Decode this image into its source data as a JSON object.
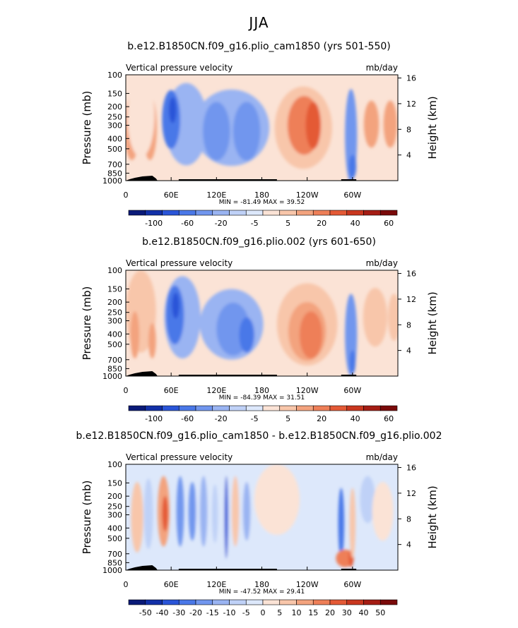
{
  "page_title": "JJA",
  "chart_data": [
    {
      "type": "heatmap",
      "title": "b.e12.B1850CN.f09_g16.plio_cam1850 (yrs 501-550)",
      "left_label": "Vertical pressure velocity",
      "right_label": "mb/day",
      "ylabel": "Pressure (mb)",
      "ylabel_right": "Height (km)",
      "x_ticks": [
        "0",
        "60E",
        "120E",
        "180",
        "120W",
        "60W"
      ],
      "y_ticks": [
        "100",
        "150",
        "200",
        "250",
        "300",
        "400",
        "500",
        "700",
        "850",
        "1000"
      ],
      "height_ticks": [
        "4",
        "8",
        "12",
        "16"
      ],
      "min_max_text": "MIN = -81.49   MAX =  39.52",
      "colorbar_labels": [
        "-100",
        "-60",
        "-20",
        "-5",
        "5",
        "20",
        "40",
        "60"
      ],
      "colorbar_colors": [
        "#0a1a78",
        "#1230a8",
        "#2a55d8",
        "#4a78e8",
        "#7196ee",
        "#9ab4f2",
        "#bfd1f7",
        "#dde8fb",
        "#fbe3d6",
        "#f8c6aa",
        "#f3a37e",
        "#ee7f58",
        "#e45a36",
        "#c9371f",
        "#a51d14",
        "#7a0a0a"
      ],
      "blobs": [
        {
          "lon": 8,
          "lev": 4.5,
          "rx": 10,
          "ry": 5.5,
          "value": 20
        },
        {
          "lon": 32,
          "lev": 4.5,
          "rx": 9,
          "ry": 5.5,
          "value": 20
        },
        {
          "lon": 20,
          "lev": 3.5,
          "rx": 18,
          "ry": 7,
          "value": 5
        },
        {
          "lon": 80,
          "lev": 4.2,
          "rx": 28,
          "ry": 7,
          "value": -15
        },
        {
          "lon": 60,
          "lev": 3.8,
          "rx": 12,
          "ry": 5,
          "value": -40
        },
        {
          "lon": 62,
          "lev": 3.0,
          "rx": 5,
          "ry": 2.2,
          "value": -70
        },
        {
          "lon": 140,
          "lev": 4.5,
          "rx": 50,
          "ry": 6.5,
          "value": -12
        },
        {
          "lon": 120,
          "lev": 4.8,
          "rx": 18,
          "ry": 5,
          "value": -35
        },
        {
          "lon": 160,
          "lev": 4.8,
          "rx": 18,
          "ry": 5,
          "value": -25
        },
        {
          "lon": 235,
          "lev": 4.5,
          "rx": 38,
          "ry": 7,
          "value": 10
        },
        {
          "lon": 236,
          "lev": 4.3,
          "rx": 22,
          "ry": 5,
          "value": 25
        },
        {
          "lon": 248,
          "lev": 4.3,
          "rx": 10,
          "ry": 4,
          "value": 35
        },
        {
          "lon": 298,
          "lev": 5.2,
          "rx": 8,
          "ry": 8,
          "value": -20
        },
        {
          "lon": 300,
          "lev": 7.8,
          "rx": 5,
          "ry": 2,
          "value": -55
        },
        {
          "lon": 325,
          "lev": 4.2,
          "rx": 10,
          "ry": 4,
          "value": 20
        },
        {
          "lon": 350,
          "lev": 4.2,
          "rx": 9,
          "ry": 4,
          "value": 15
        }
      ]
    },
    {
      "type": "heatmap",
      "title": "b.e12.B1850CN.f09_g16.plio.002 (yrs 601-650)",
      "left_label": "Vertical pressure velocity",
      "right_label": "mb/day",
      "ylabel": "Pressure (mb)",
      "ylabel_right": "Height (km)",
      "x_ticks": [
        "0",
        "60E",
        "120E",
        "180",
        "120W",
        "60W"
      ],
      "y_ticks": [
        "100",
        "150",
        "200",
        "250",
        "300",
        "400",
        "500",
        "700",
        "850",
        "1000"
      ],
      "height_ticks": [
        "4",
        "8",
        "12",
        "16"
      ],
      "min_max_text": "MIN = -84.39   MAX =  31.51",
      "colorbar_labels": [
        "-100",
        "-60",
        "-20",
        "-5",
        "5",
        "20",
        "40",
        "60"
      ],
      "colorbar_colors": [
        "#0a1a78",
        "#1230a8",
        "#2a55d8",
        "#4a78e8",
        "#7196ee",
        "#9ab4f2",
        "#bfd1f7",
        "#dde8fb",
        "#fbe3d6",
        "#f8c6aa",
        "#f3a37e",
        "#ee7f58",
        "#e45a36",
        "#c9371f",
        "#a51d14",
        "#7a0a0a"
      ],
      "blobs": [
        {
          "lon": 20,
          "lev": 3.5,
          "rx": 20,
          "ry": 7,
          "value": 8
        },
        {
          "lon": 12,
          "lev": 5.5,
          "rx": 6,
          "ry": 4,
          "value": 20
        },
        {
          "lon": 35,
          "lev": 6.0,
          "rx": 5,
          "ry": 3,
          "value": 12
        },
        {
          "lon": 75,
          "lev": 4.0,
          "rx": 24,
          "ry": 7,
          "value": -12
        },
        {
          "lon": 65,
          "lev": 3.8,
          "rx": 12,
          "ry": 5,
          "value": -40
        },
        {
          "lon": 66,
          "lev": 3.0,
          "rx": 5,
          "ry": 2.2,
          "value": -70
        },
        {
          "lon": 140,
          "lev": 4.6,
          "rx": 42,
          "ry": 6,
          "value": -10
        },
        {
          "lon": 142,
          "lev": 5.0,
          "rx": 22,
          "ry": 4.5,
          "value": -25
        },
        {
          "lon": 160,
          "lev": 5.5,
          "rx": 10,
          "ry": 3,
          "value": -45
        },
        {
          "lon": 240,
          "lev": 4.6,
          "rx": 40,
          "ry": 7,
          "value": 10
        },
        {
          "lon": 240,
          "lev": 5.2,
          "rx": 25,
          "ry": 5,
          "value": 20
        },
        {
          "lon": 245,
          "lev": 5.5,
          "rx": 15,
          "ry": 4,
          "value": 28
        },
        {
          "lon": 298,
          "lev": 5.5,
          "rx": 8,
          "ry": 7,
          "value": -20
        },
        {
          "lon": 300,
          "lev": 7.8,
          "rx": 4,
          "ry": 2,
          "value": -50
        },
        {
          "lon": 330,
          "lev": 4.0,
          "rx": 16,
          "ry": 5,
          "value": 6
        },
        {
          "lon": 355,
          "lev": 4.0,
          "rx": 8,
          "ry": 4,
          "value": 8
        }
      ]
    },
    {
      "type": "heatmap",
      "title": "b.e12.B1850CN.f09_g16.plio_cam1850 - b.e12.B1850CN.f09_g16.plio.002",
      "left_label": "Vertical pressure velocity",
      "right_label": "mb/day",
      "ylabel": "Pressure (mb)",
      "ylabel_right": "Height (km)",
      "x_ticks": [
        "0",
        "60E",
        "120E",
        "180",
        "120W",
        "60W"
      ],
      "y_ticks": [
        "100",
        "150",
        "200",
        "250",
        "300",
        "400",
        "500",
        "700",
        "850",
        "1000"
      ],
      "height_ticks": [
        "4",
        "8",
        "12",
        "16"
      ],
      "min_max_text": "MIN = -47.52   MAX =  29.41",
      "colorbar_labels": [
        "-50",
        "-40",
        "-30",
        "-20",
        "-15",
        "-10",
        "-5",
        "0",
        "5",
        "10",
        "15",
        "20",
        "30",
        "40",
        "50"
      ],
      "colorbar_colors": [
        "#0a1a78",
        "#1230a8",
        "#2a55d8",
        "#4a78e8",
        "#7196ee",
        "#9ab4f2",
        "#bfd1f7",
        "#dde8fb",
        "#fbe3d6",
        "#f8c6aa",
        "#f3a37e",
        "#ee7f58",
        "#e45a36",
        "#c9371f",
        "#a51d14",
        "#7a0a0a"
      ],
      "blobs": [
        {
          "lon": 150,
          "lev": 4.0,
          "rx": 60,
          "ry": 8,
          "value": -3
        },
        {
          "lon": 15,
          "lev": 4.5,
          "rx": 8,
          "ry": 6,
          "value": 8
        },
        {
          "lon": 30,
          "lev": 4.2,
          "rx": 6,
          "ry": 6,
          "value": -8
        },
        {
          "lon": 50,
          "lev": 4.0,
          "rx": 8,
          "ry": 6,
          "value": 15
        },
        {
          "lon": 52,
          "lev": 4.2,
          "rx": 4,
          "ry": 3,
          "value": 30
        },
        {
          "lon": 72,
          "lev": 4.0,
          "rx": 5,
          "ry": 6,
          "value": -15
        },
        {
          "lon": 88,
          "lev": 4.0,
          "rx": 5,
          "ry": 5,
          "value": -18
        },
        {
          "lon": 103,
          "lev": 4.0,
          "rx": 5,
          "ry": 6,
          "value": -12
        },
        {
          "lon": 118,
          "lev": 4.2,
          "rx": 4,
          "ry": 5,
          "value": -8
        },
        {
          "lon": 133,
          "lev": 4.5,
          "rx": 2.5,
          "ry": 7,
          "value": -30
        },
        {
          "lon": 145,
          "lev": 4.0,
          "rx": 5,
          "ry": 6,
          "value": 8
        },
        {
          "lon": 160,
          "lev": 4.0,
          "rx": 5,
          "ry": 5,
          "value": -10
        },
        {
          "lon": 200,
          "lev": 3.0,
          "rx": 30,
          "ry": 6,
          "value": 4
        },
        {
          "lon": 285,
          "lev": 5.0,
          "rx": 4,
          "ry": 6,
          "value": -20
        },
        {
          "lon": 290,
          "lev": 8.0,
          "rx": 12,
          "ry": 1.5,
          "value": 20
        },
        {
          "lon": 298,
          "lev": 8.0,
          "rx": 3,
          "ry": 1.5,
          "value": 30
        },
        {
          "lon": 300,
          "lev": 5.0,
          "rx": 4,
          "ry": 6,
          "value": 10
        },
        {
          "lon": 320,
          "lev": 3.0,
          "rx": 10,
          "ry": 4,
          "value": -6
        },
        {
          "lon": 340,
          "lev": 4.0,
          "rx": 14,
          "ry": 5,
          "value": 5
        }
      ]
    }
  ]
}
